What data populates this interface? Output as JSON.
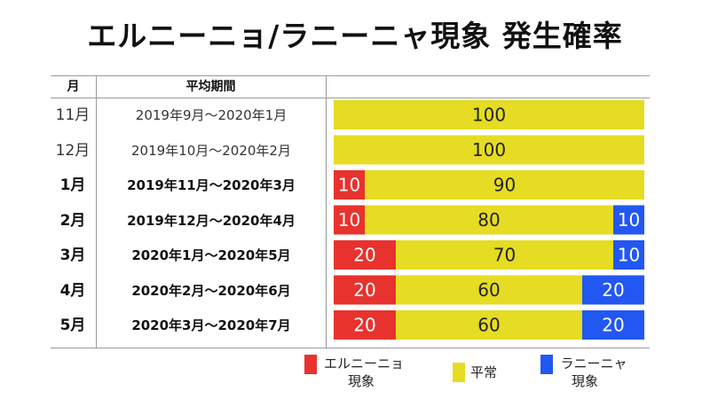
{
  "title": "エルニーニョ/ラニーニャ現象 発生確率",
  "colors": {
    "el_nino": "#e8322e",
    "normal": "#e5dc23",
    "la_nina": "#2257f2"
  },
  "chart_data": {
    "type": "bar",
    "stacked": true,
    "orientation": "horizontal",
    "headers": {
      "month": "月",
      "period": "平均期間"
    },
    "categories": [
      "11月",
      "12月",
      "1月",
      "2月",
      "3月",
      "4月",
      "5月"
    ],
    "periods": [
      "2019年9月～2020年1月",
      "2019年10月～2020年2月",
      "2019年11月～2020年3月",
      "2019年12月～2020年4月",
      "2020年1月～2020年5月",
      "2020年2月～2020年6月",
      "2020年3月～2020年7月"
    ],
    "series": [
      {
        "name": "エルニーニョ現象",
        "values": [
          0,
          0,
          10,
          10,
          20,
          20,
          20
        ]
      },
      {
        "name": "平常",
        "values": [
          100,
          100,
          90,
          80,
          70,
          60,
          60
        ]
      },
      {
        "name": "ラニーニャ現象",
        "values": [
          0,
          0,
          0,
          10,
          10,
          20,
          20
        ]
      }
    ],
    "xlim": [
      0,
      100
    ]
  },
  "legend": [
    {
      "line1": "エルニーニョ",
      "line2": "現象"
    },
    {
      "line1": "平常",
      "line2": ""
    },
    {
      "line1": "ラニーニャ",
      "line2": "現象"
    }
  ]
}
